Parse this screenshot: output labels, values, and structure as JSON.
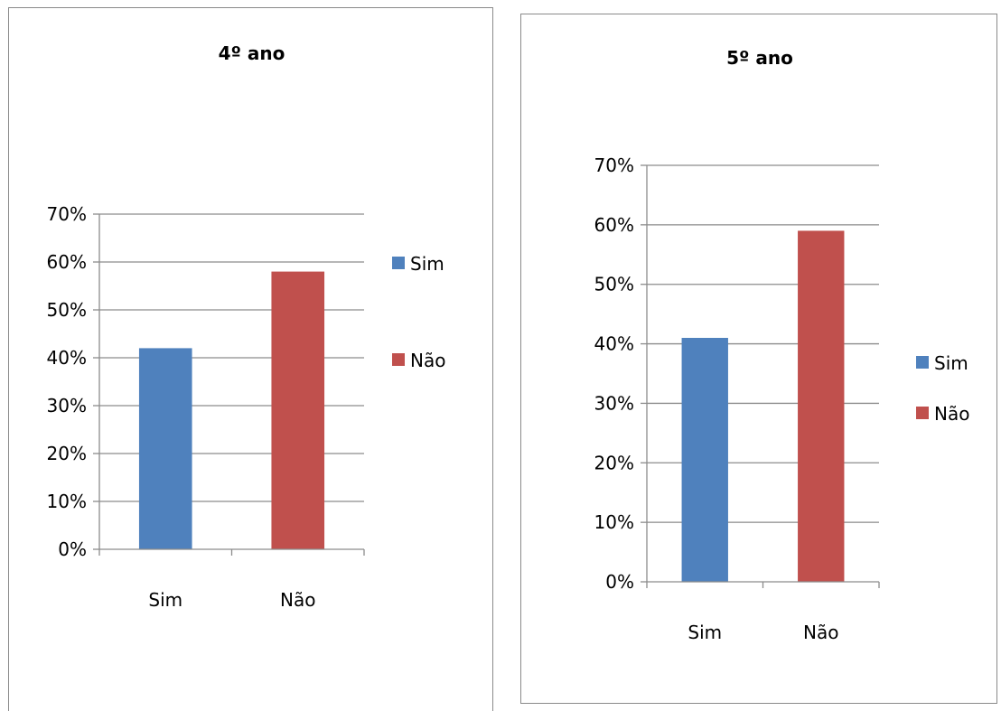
{
  "chart_data": [
    {
      "type": "bar",
      "title": "4º ano",
      "categories": [
        "Sim",
        "Não"
      ],
      "values": [
        0.42,
        0.58
      ],
      "series": [
        {
          "name": "Sim",
          "values": [
            0.42,
            null
          ]
        },
        {
          "name": "Não",
          "values": [
            null,
            0.58
          ]
        }
      ],
      "colors": [
        "#4f81bd",
        "#c0504d"
      ],
      "y_ticks": [
        "0%",
        "10%",
        "20%",
        "30%",
        "40%",
        "50%",
        "60%",
        "70%"
      ],
      "ylim": [
        0,
        0.7
      ],
      "legend": {
        "position": "right",
        "entries": [
          "Sim",
          "Não"
        ]
      },
      "grid": true,
      "xlabel": "",
      "ylabel": ""
    },
    {
      "type": "bar",
      "title": "5º ano",
      "categories": [
        "Sim",
        "Não"
      ],
      "values": [
        0.41,
        0.59
      ],
      "series": [
        {
          "name": "Sim",
          "values": [
            0.41,
            null
          ]
        },
        {
          "name": "Não",
          "values": [
            null,
            0.59
          ]
        }
      ],
      "colors": [
        "#4f81bd",
        "#c0504d"
      ],
      "y_ticks": [
        "0%",
        "10%",
        "20%",
        "30%",
        "40%",
        "50%",
        "60%",
        "70%"
      ],
      "ylim": [
        0,
        0.7
      ],
      "legend": {
        "position": "right",
        "entries": [
          "Sim",
          "Não"
        ]
      },
      "grid": true,
      "xlabel": "",
      "ylabel": ""
    }
  ]
}
